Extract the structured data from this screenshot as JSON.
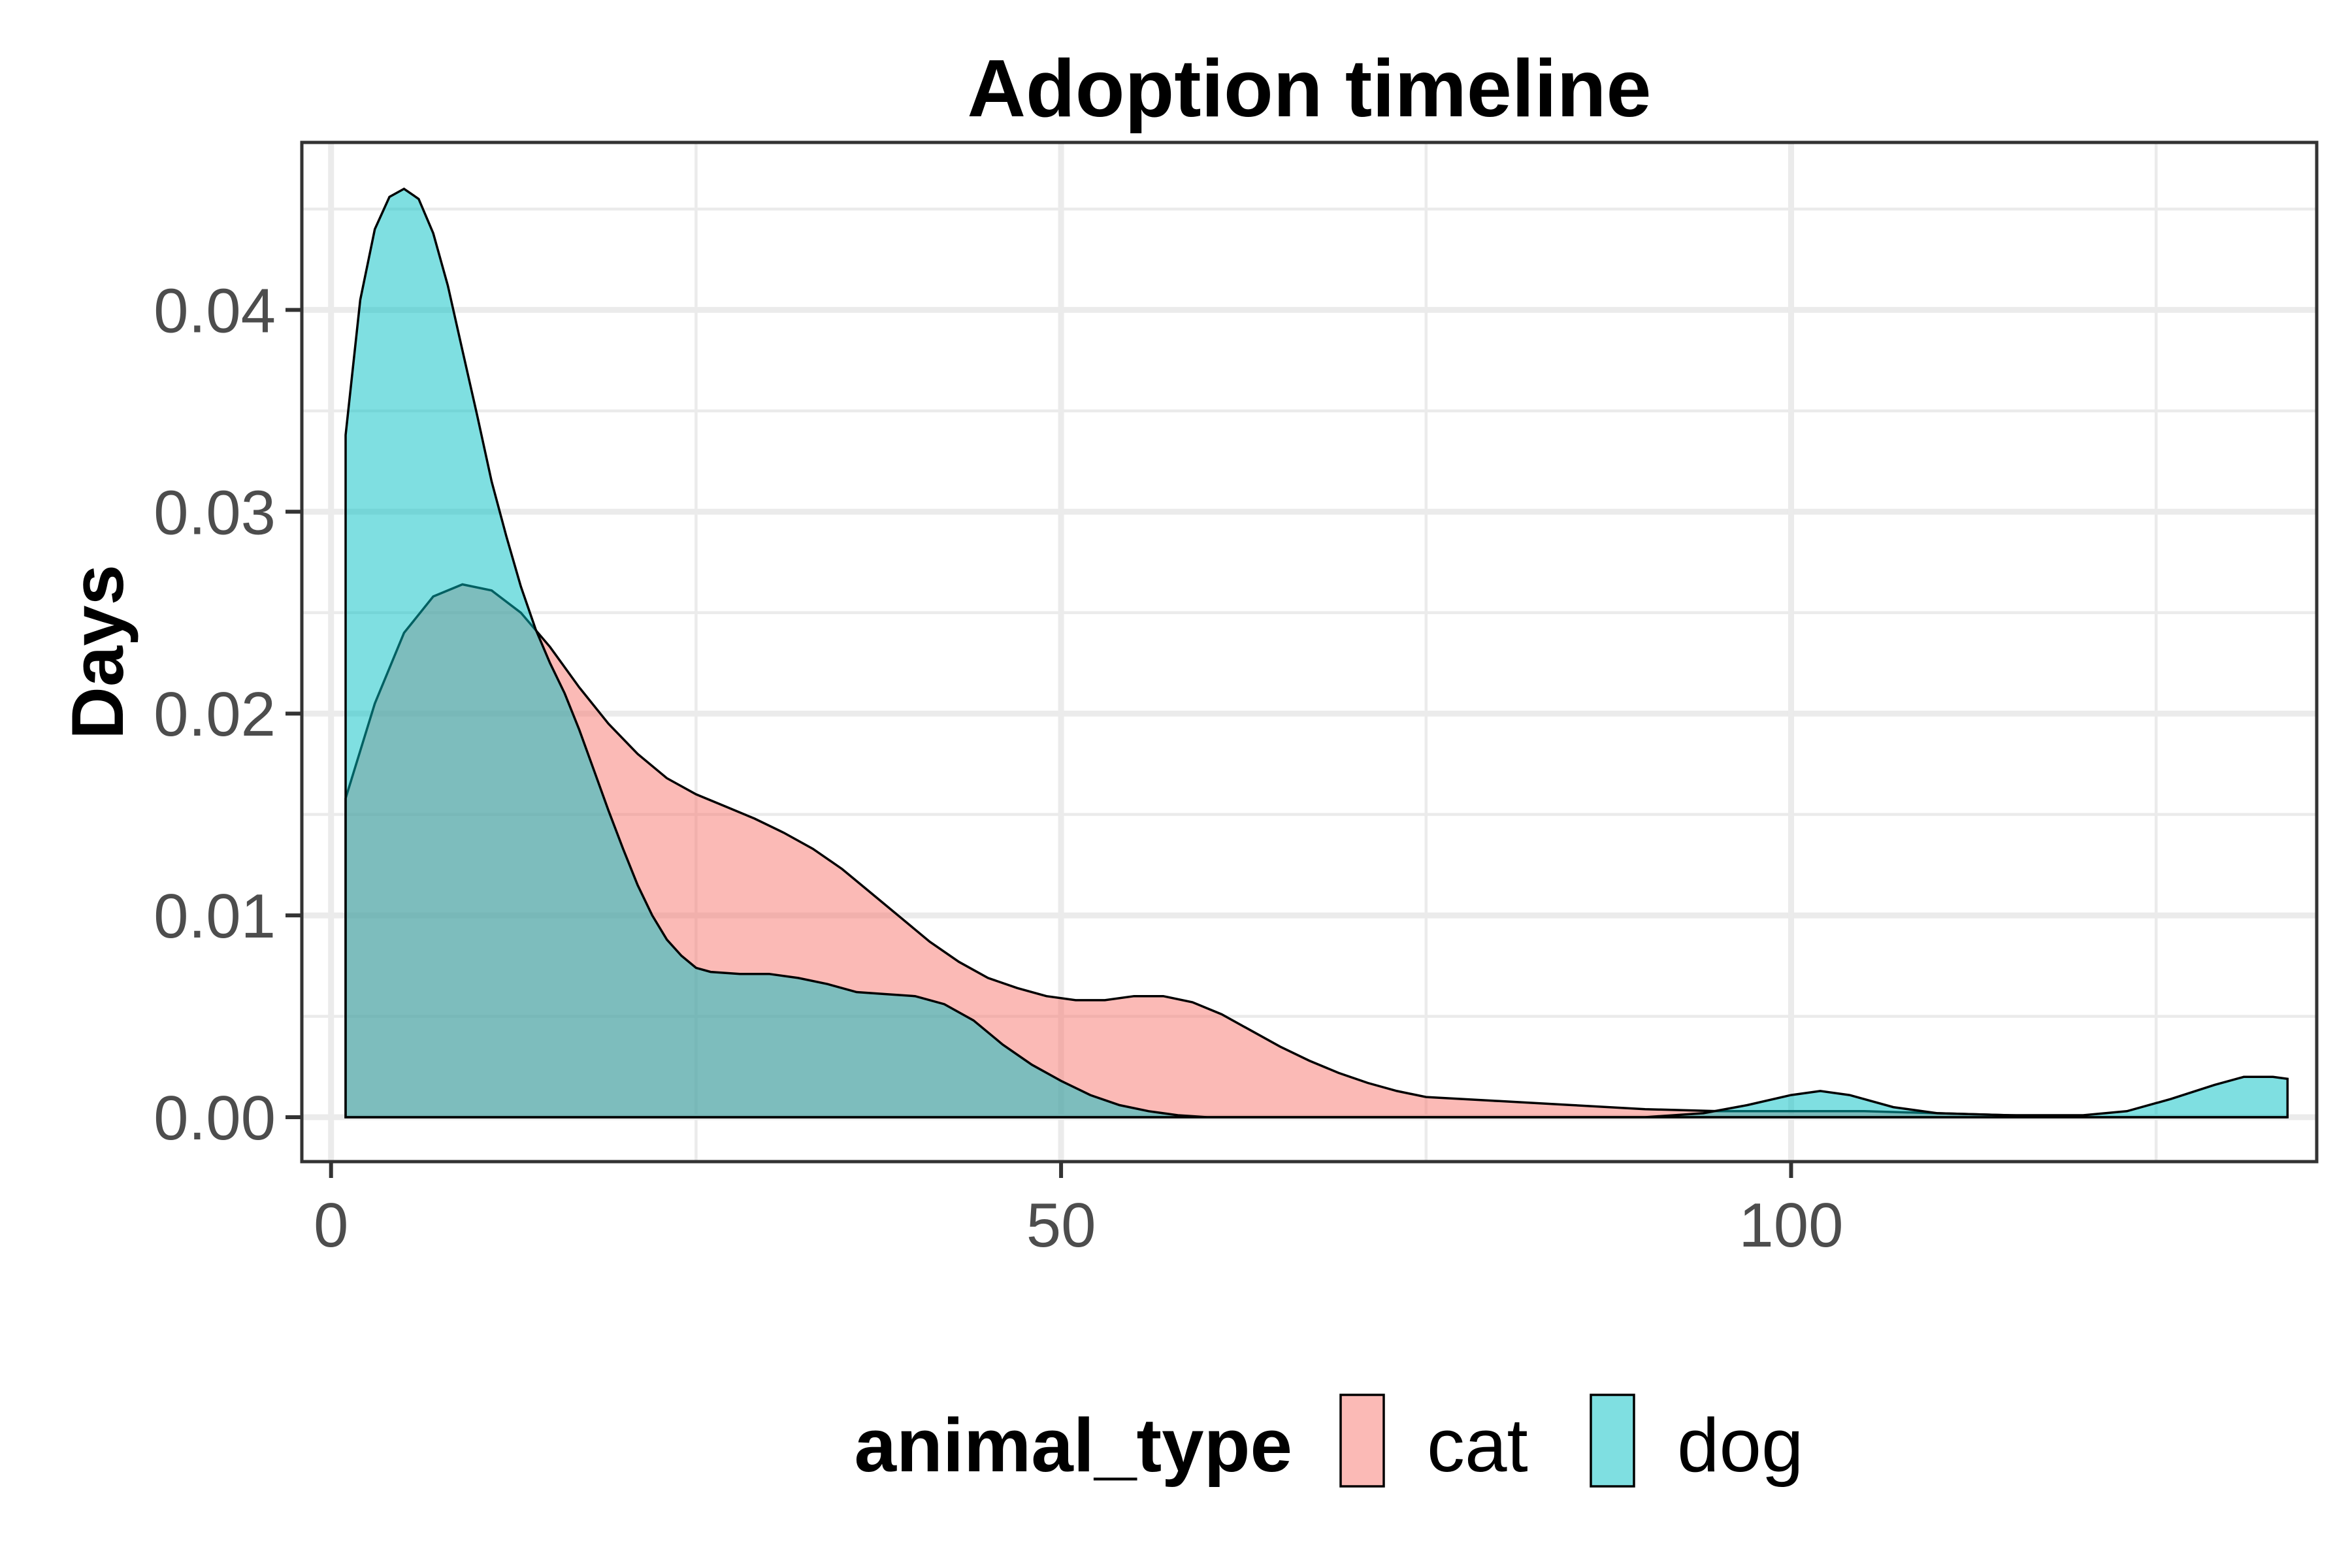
{
  "chart_data": {
    "type": "area",
    "title": "Adoption timeline",
    "xlabel": "",
    "ylabel": "Days",
    "xlim": [
      -2,
      136
    ],
    "ylim": [
      -0.0022,
      0.0483
    ],
    "x_ticks": [
      0,
      50,
      100
    ],
    "x_tick_labels": [
      "0",
      "50",
      "100"
    ],
    "x_minor_ticks": [
      25,
      75,
      125
    ],
    "y_ticks": [
      0,
      0.01,
      0.02,
      0.03,
      0.04
    ],
    "y_tick_labels": [
      "0.00",
      "0.01",
      "0.02",
      "0.03",
      "0.04"
    ],
    "y_minor_ticks": [
      0.005,
      0.015,
      0.025,
      0.035,
      0.045
    ],
    "grid": true,
    "legend": {
      "title": "animal_type",
      "position": "bottom",
      "entries": [
        "cat",
        "dog"
      ]
    },
    "series": [
      {
        "name": "cat",
        "color": "#F8766D",
        "fill_alpha": 0.5,
        "points": [
          [
            1,
            0.0158
          ],
          [
            3,
            0.0205
          ],
          [
            5,
            0.024
          ],
          [
            7,
            0.0258
          ],
          [
            9,
            0.0264
          ],
          [
            11,
            0.0261
          ],
          [
            13,
            0.025
          ],
          [
            15,
            0.0233
          ],
          [
            17,
            0.0213
          ],
          [
            19,
            0.0195
          ],
          [
            21,
            0.018
          ],
          [
            23,
            0.0168
          ],
          [
            25,
            0.016
          ],
          [
            27,
            0.0154
          ],
          [
            29,
            0.0148
          ],
          [
            31,
            0.0141
          ],
          [
            33,
            0.0133
          ],
          [
            35,
            0.0123
          ],
          [
            37,
            0.0111
          ],
          [
            39,
            0.0099
          ],
          [
            41,
            0.0087
          ],
          [
            43,
            0.0077
          ],
          [
            45,
            0.0069
          ],
          [
            47,
            0.0064
          ],
          [
            49,
            0.006
          ],
          [
            51,
            0.0058
          ],
          [
            53,
            0.0058
          ],
          [
            55,
            0.006
          ],
          [
            57,
            0.006
          ],
          [
            59,
            0.0057
          ],
          [
            61,
            0.0051
          ],
          [
            63,
            0.0043
          ],
          [
            65,
            0.0035
          ],
          [
            67,
            0.0028
          ],
          [
            69,
            0.0022
          ],
          [
            71,
            0.0017
          ],
          [
            73,
            0.0013
          ],
          [
            75,
            0.001
          ],
          [
            80,
            0.0008
          ],
          [
            85,
            0.0006
          ],
          [
            90,
            0.0004
          ],
          [
            95,
            0.0003
          ],
          [
            100,
            0.0003
          ],
          [
            105,
            0.0003
          ],
          [
            110,
            0.0002
          ],
          [
            115,
            0.0001
          ],
          [
            120,
            0.0
          ],
          [
            125,
            0.0
          ],
          [
            130,
            0.0
          ],
          [
            134,
            0.0
          ]
        ]
      },
      {
        "name": "dog",
        "color": "#00BFC4",
        "fill_alpha": 0.5,
        "points": [
          [
            1,
            0.0338
          ],
          [
            2,
            0.0405
          ],
          [
            3,
            0.044
          ],
          [
            4,
            0.0456
          ],
          [
            5,
            0.046
          ],
          [
            6,
            0.0455
          ],
          [
            7,
            0.0438
          ],
          [
            8,
            0.0412
          ],
          [
            9,
            0.038
          ],
          [
            10,
            0.0348
          ],
          [
            11,
            0.0315
          ],
          [
            12,
            0.0288
          ],
          [
            13,
            0.0263
          ],
          [
            14,
            0.0242
          ],
          [
            15,
            0.0225
          ],
          [
            16,
            0.021
          ],
          [
            17,
            0.0192
          ],
          [
            18,
            0.0172
          ],
          [
            19,
            0.0152
          ],
          [
            20,
            0.0133
          ],
          [
            21,
            0.0115
          ],
          [
            22,
            0.01
          ],
          [
            23,
            0.0088
          ],
          [
            24,
            0.008
          ],
          [
            25,
            0.0074
          ],
          [
            26,
            0.0072
          ],
          [
            28,
            0.0071
          ],
          [
            30,
            0.0071
          ],
          [
            32,
            0.0069
          ],
          [
            34,
            0.0066
          ],
          [
            36,
            0.0062
          ],
          [
            38,
            0.0061
          ],
          [
            40,
            0.006
          ],
          [
            42,
            0.0056
          ],
          [
            44,
            0.0048
          ],
          [
            46,
            0.0036
          ],
          [
            48,
            0.0026
          ],
          [
            50,
            0.0018
          ],
          [
            52,
            0.0011
          ],
          [
            54,
            0.0006
          ],
          [
            56,
            0.0003
          ],
          [
            58,
            0.0001
          ],
          [
            60,
            0.0
          ],
          [
            70,
            0.0
          ],
          [
            80,
            0.0
          ],
          [
            90,
            0.0
          ],
          [
            94,
            0.0002
          ],
          [
            97,
            0.0006
          ],
          [
            100,
            0.0011
          ],
          [
            102,
            0.0013
          ],
          [
            104,
            0.0011
          ],
          [
            107,
            0.0005
          ],
          [
            110,
            0.0002
          ],
          [
            115,
            0.0001
          ],
          [
            120,
            0.0001
          ],
          [
            123,
            0.0003
          ],
          [
            126,
            0.0009
          ],
          [
            129,
            0.0016
          ],
          [
            131,
            0.002
          ],
          [
            133,
            0.002
          ],
          [
            134,
            0.0019
          ]
        ]
      }
    ]
  }
}
